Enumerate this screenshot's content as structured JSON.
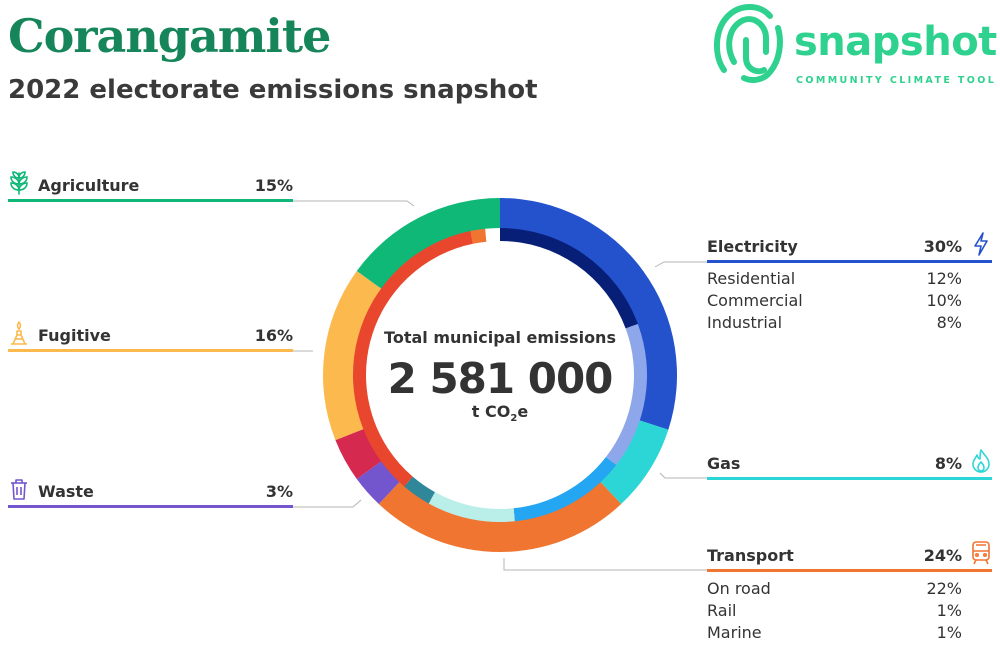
{
  "header": {
    "title": "Corangamite",
    "subtitle": "2022 electorate emissions snapshot"
  },
  "logo": {
    "word": "snapshot",
    "tagline": "COMMUNITY CLIMATE TOOL",
    "color": "#2fd18e"
  },
  "center": {
    "label": "Total municipal emissions",
    "value": "2 581 000",
    "unit_prefix": "t CO",
    "unit_sub": "2",
    "unit_suffix": "e"
  },
  "categories": {
    "agriculture": {
      "label": "Agriculture",
      "pct": "15%",
      "color": "#10b878",
      "icon": "wheat-icon"
    },
    "fugitive": {
      "label": "Fugitive",
      "pct": "16%",
      "color": "#fbb94e",
      "icon": "gas-flare-icon"
    },
    "waste": {
      "label": "Waste",
      "pct": "3%",
      "color": "#7356cd",
      "icon": "trash-icon"
    },
    "electricity": {
      "label": "Electricity",
      "pct": "30%",
      "color": "#2352cc",
      "icon": "lightning-icon",
      "subs": [
        {
          "label": "Residential",
          "pct": "12%"
        },
        {
          "label": "Commercial",
          "pct": "10%"
        },
        {
          "label": "Industrial",
          "pct": "8%"
        }
      ]
    },
    "gas": {
      "label": "Gas",
      "pct": "8%",
      "color": "#2dd6d6",
      "icon": "flame-icon"
    },
    "transport": {
      "label": "Transport",
      "pct": "24%",
      "color": "#f07530",
      "icon": "train-icon",
      "subs": [
        {
          "label": "On road",
          "pct": "22%"
        },
        {
          "label": "Rail",
          "pct": "1%"
        },
        {
          "label": "Marine",
          "pct": "1%"
        }
      ]
    }
  },
  "chart_data": {
    "type": "pie",
    "variant": "donut",
    "total": 2581000,
    "unit": "t CO2e",
    "series": [
      {
        "name": "Electricity",
        "value": 30,
        "color": "#2352cc",
        "breakdown": [
          {
            "name": "Residential",
            "value": 12
          },
          {
            "name": "Commercial",
            "value": 10
          },
          {
            "name": "Industrial",
            "value": 8
          }
        ]
      },
      {
        "name": "Gas",
        "value": 8,
        "color": "#2dd6d6"
      },
      {
        "name": "Transport",
        "value": 24,
        "color": "#f07530",
        "breakdown": [
          {
            "name": "On road",
            "value": 22
          },
          {
            "name": "Rail",
            "value": 1
          },
          {
            "name": "Marine",
            "value": 1
          }
        ]
      },
      {
        "name": "Waste",
        "value": 3,
        "color": "#7356cd"
      },
      {
        "name": "Fugitive",
        "value": 16,
        "color": "#fbb94e"
      },
      {
        "name": "Agriculture",
        "value": 15,
        "color": "#10b878"
      }
    ],
    "extra_segments": [
      {
        "value": 4,
        "color": "#d5294f"
      }
    ],
    "inner_ring": [
      {
        "value": 12,
        "color": "#081f78"
      },
      {
        "value": 10,
        "color": "#8ea6ea"
      },
      {
        "value": 8,
        "color": "#24a6f2"
      },
      {
        "value": 6,
        "color": "#b9eee9"
      },
      {
        "value": 2,
        "color": "#2f8799"
      },
      {
        "value": 22,
        "color": "#e9462e"
      },
      {
        "value": 1,
        "color": "#f07530"
      },
      {
        "value": 1,
        "color": "#ffffff"
      }
    ]
  }
}
